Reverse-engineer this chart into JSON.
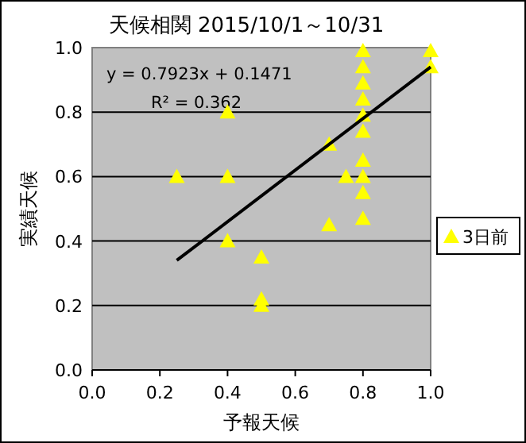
{
  "chart_data": {
    "type": "scatter",
    "title": "天候相関 2015/10/1～10/31",
    "xlabel": "予報天候",
    "ylabel": "実績天候",
    "annotations": [
      "y = 0.7923x + 0.1471",
      "R² = 0.362"
    ],
    "xlim": [
      0,
      1
    ],
    "ylim": [
      0,
      1
    ],
    "xticks": [
      {
        "value": 0,
        "label": "0.0"
      },
      {
        "value": 0.2,
        "label": "0.2"
      },
      {
        "value": 0.4,
        "label": "0.4"
      },
      {
        "value": 0.6,
        "label": "0.6"
      },
      {
        "value": 0.8,
        "label": "0.8"
      },
      {
        "value": 1,
        "label": "1.0"
      }
    ],
    "yticks": [
      {
        "value": 0,
        "label": "0.0"
      },
      {
        "value": 0.2,
        "label": "0.2"
      },
      {
        "value": 0.4,
        "label": "0.4"
      },
      {
        "value": 0.6,
        "label": "0.6"
      },
      {
        "value": 0.8,
        "label": "0.8"
      },
      {
        "value": 1,
        "label": "1.0"
      }
    ],
    "grid": "y",
    "legend": "right",
    "marker": "triangle",
    "series": [
      {
        "name": "3日前",
        "color": "#ffff00",
        "x": [
          0.25,
          0.4,
          0.4,
          0.4,
          0.5,
          0.5,
          0.5,
          0.7,
          0.7,
          0.75,
          0.8,
          0.8,
          0.8,
          0.8,
          0.8,
          0.8,
          0.8,
          0.8,
          0.8,
          0.8,
          1.0,
          1.0
        ],
        "values": [
          0.6,
          0.8,
          0.6,
          0.4,
          0.35,
          0.22,
          0.2,
          0.7,
          0.45,
          0.6,
          0.99,
          0.94,
          0.89,
          0.84,
          0.79,
          0.74,
          0.65,
          0.6,
          0.55,
          0.47,
          0.99,
          0.94
        ]
      },
      {
        "type": "line",
        "color": "#000000",
        "marker": "none",
        "x": [
          0.25,
          1.0
        ],
        "values": [
          0.34,
          0.94
        ]
      }
    ]
  }
}
